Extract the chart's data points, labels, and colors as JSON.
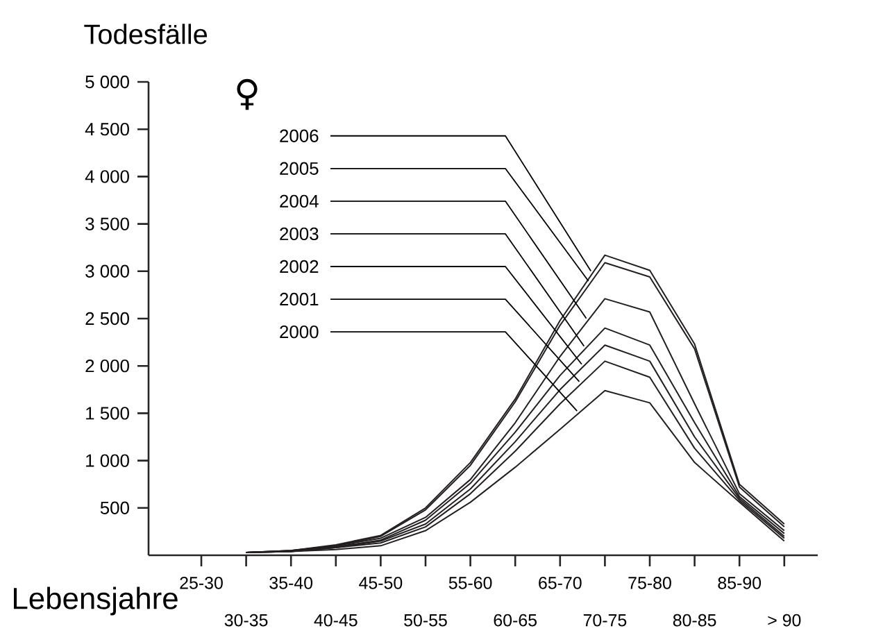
{
  "chart_data": {
    "type": "line",
    "xlabel": "Lebensjahre",
    "ylabel": "Todesfälle",
    "categories": [
      "25-30",
      "30-35",
      "35-40",
      "40-45",
      "45-50",
      "50-55",
      "55-60",
      "60-65",
      "65-70",
      "70-75",
      "75-80",
      "80-85",
      "85-90",
      "> 90"
    ],
    "series": [
      {
        "name": "2006",
        "color": "#231f20",
        "values": [
          null,
          30,
          50,
          110,
          210,
          500,
          980,
          1650,
          2480,
          3170,
          3010,
          2230,
          750,
          330
        ]
      },
      {
        "name": "2005",
        "color": "#231f20",
        "values": [
          null,
          30,
          50,
          100,
          200,
          480,
          950,
          1620,
          2430,
          3090,
          2940,
          2180,
          720,
          300
        ]
      },
      {
        "name": "2004",
        "color": "#231f20",
        "values": [
          null,
          30,
          50,
          100,
          180,
          400,
          800,
          1400,
          2100,
          2710,
          2570,
          1600,
          650,
          260
        ]
      },
      {
        "name": "2003",
        "color": "#231f20",
        "values": [
          null,
          30,
          40,
          90,
          160,
          370,
          760,
          1300,
          1900,
          2400,
          2220,
          1400,
          620,
          230
        ]
      },
      {
        "name": "2002",
        "color": "#231f20",
        "values": [
          null,
          30,
          40,
          80,
          150,
          330,
          700,
          1200,
          1750,
          2220,
          2050,
          1250,
          600,
          200
        ]
      },
      {
        "name": "2001",
        "color": "#231f20",
        "values": [
          null,
          30,
          40,
          80,
          130,
          300,
          650,
          1100,
          1600,
          2050,
          1880,
          1130,
          580,
          180
        ]
      },
      {
        "name": "2000",
        "color": "#231f20",
        "values": [
          null,
          30,
          40,
          60,
          100,
          260,
          560,
          930,
          1330,
          1740,
          1610,
          980,
          560,
          150
        ]
      }
    ],
    "ylim": [
      0,
      5000
    ],
    "yticks": [
      {
        "value": 500,
        "label": "500"
      },
      {
        "value": 1000,
        "label": "1 000"
      },
      {
        "value": 1500,
        "label": "1 500"
      },
      {
        "value": 2000,
        "label": "2 000"
      },
      {
        "value": 2500,
        "label": "2 500"
      },
      {
        "value": 3000,
        "label": "3 000"
      },
      {
        "value": 3500,
        "label": "3 500"
      },
      {
        "value": 4000,
        "label": "4 000"
      },
      {
        "value": 4500,
        "label": "4 500"
      },
      {
        "value": 5000,
        "label": "5 000"
      }
    ],
    "annotations": [
      "♀"
    ]
  }
}
